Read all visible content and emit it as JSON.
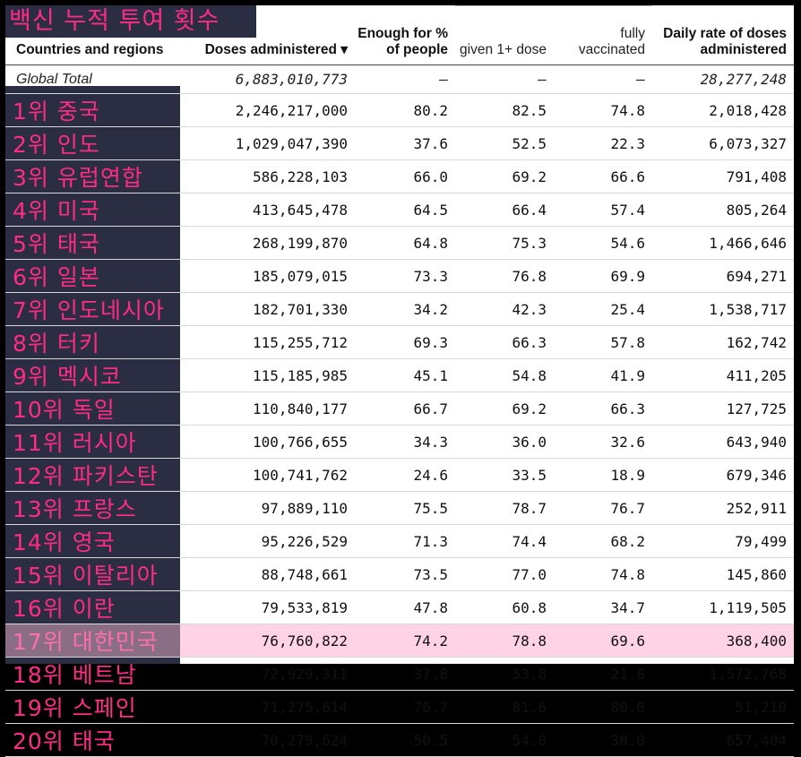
{
  "banner": "백신 누적 투여 횟수",
  "header": {
    "country": "Countries and regions",
    "doses": "Doses administered ▾",
    "enough": "Enough for % of people",
    "given": "given 1+ dose",
    "fully": "fully vaccinated",
    "daily": "Daily rate of doses administered"
  },
  "colors": {
    "rank_panel": "#2b2d42",
    "rank_text": "#ff2b86",
    "highlight_row": "#ffd3e4"
  },
  "global": {
    "label": "Global Total",
    "doses": "6,883,010,773",
    "enough": "–",
    "given": "–",
    "fully": "–",
    "daily": "28,277,248"
  },
  "rows": [
    {
      "label": "1위 중국",
      "doses": "2,246,217,000",
      "enough": "80.2",
      "given": "82.5",
      "fully": "74.8",
      "daily": "2,018,428"
    },
    {
      "label": "2위 인도",
      "doses": "1,029,047,390",
      "enough": "37.6",
      "given": "52.5",
      "fully": "22.3",
      "daily": "6,073,327"
    },
    {
      "label": "3위 유럽연합",
      "doses": "586,228,103",
      "enough": "66.0",
      "given": "69.2",
      "fully": "66.6",
      "daily": "791,408"
    },
    {
      "label": "4위 미국",
      "doses": "413,645,478",
      "enough": "64.5",
      "given": "66.4",
      "fully": "57.4",
      "daily": "805,264"
    },
    {
      "label": "5위 태국",
      "doses": "268,199,870",
      "enough": "64.8",
      "given": "75.3",
      "fully": "54.6",
      "daily": "1,466,646"
    },
    {
      "label": "6위 일본",
      "doses": "185,079,015",
      "enough": "73.3",
      "given": "76.8",
      "fully": "69.9",
      "daily": "694,271"
    },
    {
      "label": "7위 인도네시아",
      "doses": "182,701,330",
      "enough": "34.2",
      "given": "42.3",
      "fully": "25.4",
      "daily": "1,538,717"
    },
    {
      "label": "8위 터키",
      "doses": "115,255,712",
      "enough": "69.3",
      "given": "66.3",
      "fully": "57.8",
      "daily": "162,742"
    },
    {
      "label": "9위 멕시코",
      "doses": "115,185,985",
      "enough": "45.1",
      "given": "54.8",
      "fully": "41.9",
      "daily": "411,205"
    },
    {
      "label": "10위 독일",
      "doses": "110,840,177",
      "enough": "66.7",
      "given": "69.2",
      "fully": "66.3",
      "daily": "127,725"
    },
    {
      "label": "11위 러시아",
      "doses": "100,766,655",
      "enough": "34.3",
      "given": "36.0",
      "fully": "32.6",
      "daily": "643,940"
    },
    {
      "label": "12위 파키스탄",
      "doses": "100,741,762",
      "enough": "24.6",
      "given": "33.5",
      "fully": "18.9",
      "daily": "679,346"
    },
    {
      "label": "13위 프랑스",
      "doses": "97,889,110",
      "enough": "75.5",
      "given": "78.7",
      "fully": "76.7",
      "daily": "252,911"
    },
    {
      "label": "14위 영국",
      "doses": "95,226,529",
      "enough": "71.3",
      "given": "74.4",
      "fully": "68.2",
      "daily": "79,499"
    },
    {
      "label": "15위 이탈리아",
      "doses": "88,748,661",
      "enough": "73.5",
      "given": "77.0",
      "fully": "74.8",
      "daily": "145,860"
    },
    {
      "label": "16위 이란",
      "doses": "79,533,819",
      "enough": "47.8",
      "given": "60.8",
      "fully": "34.7",
      "daily": "1,119,505"
    },
    {
      "label": "17위 대한민국",
      "doses": "76,760,822",
      "enough": "74.2",
      "given": "78.8",
      "fully": "69.6",
      "daily": "368,400",
      "highlight": true
    },
    {
      "label": "18위 베트남",
      "doses": "72,929,311",
      "enough": "37.8",
      "given": "53.8",
      "fully": "21.8",
      "daily": "1,572,768"
    },
    {
      "label": "19위 스페인",
      "doses": "71,275,614",
      "enough": "76.7",
      "given": "81.6",
      "fully": "80.0",
      "daily": "51,210"
    },
    {
      "label": "20위 태국",
      "doses": "70,279,624",
      "enough": "50.5",
      "given": "54.8",
      "fully": "38.0",
      "daily": "657,404"
    }
  ]
}
